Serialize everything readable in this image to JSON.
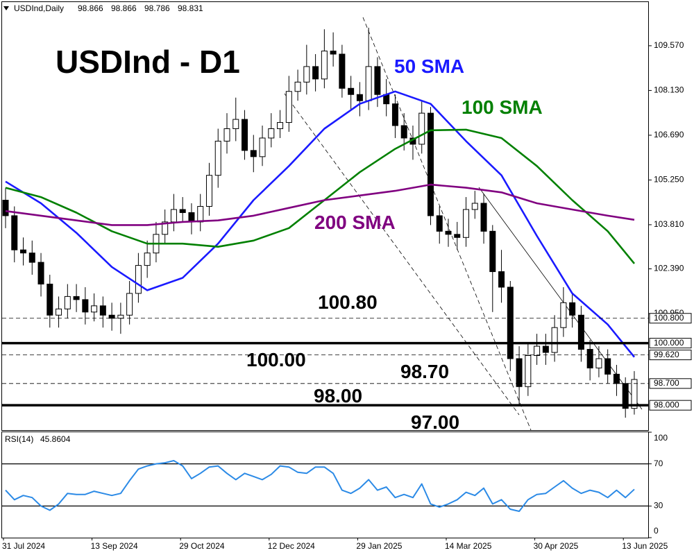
{
  "chart_data": [
    {
      "type": "candlestick",
      "title": "USDInd - D1",
      "header": "USDInd,Daily",
      "header_values": [
        98.866,
        98.866,
        98.786,
        98.831
      ],
      "categories": [
        "31 Jul 2024",
        null,
        null,
        null,
        null,
        null,
        null,
        null,
        null,
        null,
        "13 Sep 2024",
        null,
        null,
        null,
        null,
        null,
        null,
        null,
        null,
        null,
        "29 Oct 2024",
        null,
        null,
        null,
        null,
        null,
        null,
        null,
        null,
        null,
        "12 Dec 2024",
        null,
        null,
        null,
        null,
        null,
        null,
        null,
        null,
        null,
        "29 Jan 2025",
        null,
        null,
        null,
        null,
        null,
        null,
        null,
        null,
        null,
        "14 Mar 2025",
        null,
        null,
        null,
        null,
        null,
        null,
        null,
        null,
        null,
        "30 Apr 2025",
        null,
        null,
        null,
        null,
        null,
        null,
        null,
        null,
        null,
        "13 Jun 2025",
        null
      ],
      "open": [
        104.6,
        104.1,
        103.0,
        102.9,
        102.6,
        101.9,
        100.9,
        101.1,
        101.5,
        101.4,
        101.0,
        101.2,
        100.9,
        100.8,
        100.9,
        101.6,
        102.5,
        102.9,
        103.5,
        103.9,
        104.3,
        104.2,
        103.9,
        104.4,
        105.4,
        106.5,
        106.9,
        107.2,
        106.2,
        106.0,
        106.6,
        106.9,
        107.1,
        108.1,
        108.4,
        108.9,
        108.5,
        109.4,
        109.3,
        108.2,
        108.0,
        107.8,
        108.9,
        108.0,
        107.7,
        107.0,
        106.6,
        106.4,
        107.4,
        104.1,
        103.6,
        103.5,
        103.4,
        104.3,
        104.5,
        103.6,
        102.3,
        101.8,
        99.5,
        98.6,
        99.6,
        99.9,
        99.7,
        100.5,
        101.3,
        100.9,
        99.8,
        99.2,
        99.5,
        99.0,
        98.7,
        97.9
      ],
      "high": [
        105.0,
        104.4,
        103.4,
        103.3,
        102.9,
        102.2,
        101.5,
        101.9,
        101.9,
        101.8,
        101.6,
        101.5,
        101.3,
        101.3,
        102.0,
        102.9,
        103.3,
        103.9,
        104.3,
        104.8,
        104.7,
        104.5,
        104.8,
        105.8,
        106.9,
        107.4,
        107.9,
        107.5,
        106.7,
        107.0,
        107.4,
        107.5,
        108.6,
        108.8,
        109.6,
        109.3,
        110.1,
        110.0,
        109.6,
        108.6,
        108.4,
        110.15,
        109.2,
        108.5,
        108.0,
        107.4,
        107.0,
        107.8,
        107.6,
        104.4,
        104.0,
        103.9,
        104.7,
        104.9,
        104.8,
        103.8,
        103.0,
        102.0,
        99.9,
        100.0,
        100.3,
        100.3,
        100.9,
        101.8,
        101.6,
        101.2,
        100.1,
        99.9,
        99.8,
        99.3,
        98.9,
        99.1
      ],
      "low": [
        103.7,
        102.6,
        102.5,
        102.2,
        101.5,
        100.5,
        100.5,
        100.8,
        101.0,
        100.6,
        100.7,
        100.5,
        100.4,
        100.3,
        100.6,
        101.3,
        102.1,
        102.6,
        103.2,
        103.6,
        103.9,
        103.5,
        103.6,
        104.1,
        105.0,
        106.1,
        106.5,
        105.9,
        105.5,
        105.7,
        106.3,
        106.6,
        106.8,
        107.8,
        108.0,
        108.1,
        108.2,
        108.9,
        107.9,
        107.5,
        107.3,
        107.5,
        107.6,
        107.3,
        106.6,
        106.2,
        105.9,
        106.1,
        103.8,
        103.2,
        103.1,
        103.0,
        103.1,
        104.0,
        103.2,
        101.0,
        101.3,
        99.1,
        98.0,
        98.3,
        99.3,
        99.3,
        99.4,
        100.2,
        100.5,
        99.4,
        98.8,
        98.9,
        98.7,
        98.3,
        97.6,
        97.7
      ],
      "close": [
        104.1,
        103.0,
        102.9,
        102.6,
        101.9,
        100.9,
        101.1,
        101.5,
        101.4,
        101.0,
        101.2,
        100.9,
        100.8,
        100.9,
        101.6,
        102.5,
        102.9,
        103.5,
        103.9,
        104.3,
        104.2,
        103.9,
        104.4,
        105.4,
        106.5,
        106.9,
        107.2,
        106.2,
        106.0,
        106.6,
        106.9,
        107.1,
        108.1,
        108.4,
        108.9,
        108.5,
        109.4,
        109.3,
        108.2,
        108.0,
        107.8,
        108.9,
        108.0,
        107.7,
        107.0,
        106.6,
        106.4,
        107.4,
        104.1,
        103.6,
        103.5,
        103.4,
        104.3,
        104.5,
        103.6,
        102.3,
        101.8,
        99.5,
        98.6,
        99.6,
        99.9,
        99.7,
        100.5,
        101.3,
        100.9,
        99.8,
        99.2,
        99.5,
        99.0,
        98.7,
        97.9,
        98.83
      ],
      "series": [
        {
          "name": "50 SMA",
          "color": "#1a1aff",
          "x": [
            0,
            4,
            8,
            12,
            16,
            20,
            24,
            28,
            32,
            36,
            40,
            44,
            48,
            52,
            56,
            60,
            64,
            68,
            71
          ],
          "values": [
            105.2,
            104.5,
            103.55,
            102.45,
            101.7,
            102.1,
            103.2,
            104.6,
            105.7,
            106.9,
            107.7,
            108.1,
            107.7,
            106.5,
            105.4,
            103.45,
            101.6,
            100.6,
            99.55
          ]
        },
        {
          "name": "100 SMA",
          "color": "#008000",
          "x": [
            0,
            4,
            8,
            12,
            16,
            20,
            24,
            28,
            32,
            36,
            40,
            44,
            48,
            52,
            56,
            60,
            64,
            68,
            71
          ],
          "values": [
            105.0,
            104.7,
            104.2,
            103.6,
            103.2,
            103.2,
            103.1,
            103.3,
            103.7,
            104.6,
            105.5,
            106.25,
            106.85,
            106.87,
            106.6,
            105.7,
            104.6,
            103.6,
            102.56
          ]
        },
        {
          "name": "200 SMA",
          "color": "#800080",
          "x": [
            0,
            4,
            8,
            12,
            16,
            20,
            24,
            28,
            32,
            36,
            40,
            44,
            48,
            52,
            56,
            60,
            64,
            68,
            71
          ],
          "values": [
            104.25,
            104.1,
            103.95,
            103.8,
            103.8,
            103.9,
            103.95,
            104.1,
            104.35,
            104.6,
            104.75,
            104.9,
            105.1,
            105.0,
            104.85,
            104.5,
            104.3,
            104.1,
            103.97
          ]
        }
      ],
      "ylim": [
        97.2,
        110.93
      ],
      "yticks": [
        {
          "value": 109.57,
          "label": "109.570"
        },
        {
          "value": 108.13,
          "label": "108.130"
        },
        {
          "value": 106.69,
          "label": "106.690"
        },
        {
          "value": 105.25,
          "label": "105.250"
        },
        {
          "value": 103.81,
          "label": "103.810"
        },
        {
          "value": 102.39,
          "label": "102.390"
        },
        {
          "value": 100.95,
          "label": "100.950"
        }
      ],
      "levels": [
        {
          "value": 100.8,
          "label": "100.800",
          "style": "dashed"
        },
        {
          "value": 100.0,
          "label": "100.000",
          "style": "solid"
        },
        {
          "value": 99.62,
          "label": "99.620",
          "style": "dashed"
        },
        {
          "value": 98.7,
          "label": "98.700",
          "style": "dashed"
        },
        {
          "value": 98.0,
          "label": "98.000",
          "style": "solid"
        }
      ],
      "annotations": [
        "100.80",
        "100.00",
        "98.70",
        "98.00",
        "97.00"
      ]
    },
    {
      "type": "line",
      "title": "RSI(14)",
      "last_value": 45.8604,
      "color": "#2b8ae6",
      "values": [
        45,
        36,
        40,
        38,
        30,
        26,
        32,
        42,
        41,
        41,
        44,
        42,
        40,
        42,
        54,
        65,
        68,
        70,
        71,
        73,
        68,
        56,
        61,
        67,
        68,
        61,
        55,
        61,
        58,
        55,
        60,
        68,
        67,
        62,
        61,
        67,
        67,
        61,
        45,
        42,
        47,
        55,
        45,
        48,
        38,
        41,
        38,
        51,
        32,
        29,
        32,
        36,
        43,
        40,
        47,
        32,
        36,
        27,
        25,
        36,
        41,
        42,
        48,
        54,
        47,
        42,
        45,
        43,
        38,
        45,
        38,
        45.86
      ],
      "ylim": [
        0,
        100
      ],
      "yticks": [
        100,
        70,
        30,
        0
      ]
    }
  ]
}
